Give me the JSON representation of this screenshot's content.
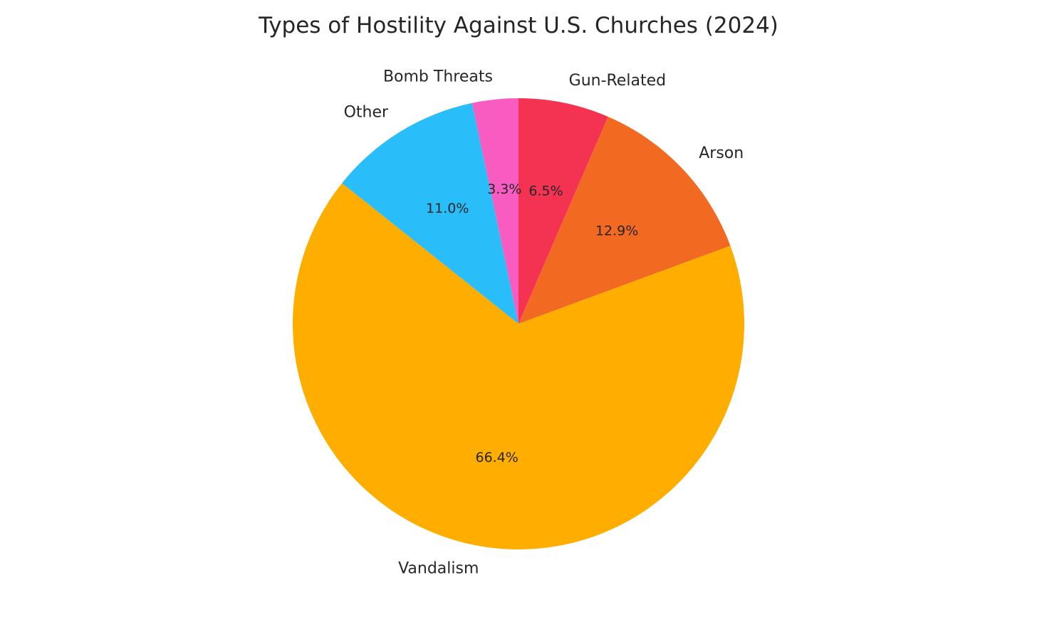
{
  "chart_data": {
    "type": "pie",
    "title": "Types of Hostility Against U.S. Churches (2024)",
    "start_angle_deg": 90,
    "direction": "clockwise",
    "slices": [
      {
        "label": "Gun-Related",
        "value": 6.5,
        "pct_text": "6.5%",
        "color": "#F43353"
      },
      {
        "label": "Arson",
        "value": 12.9,
        "pct_text": "12.9%",
        "color": "#F26A22"
      },
      {
        "label": "Vandalism",
        "value": 66.4,
        "pct_text": "66.4%",
        "color": "#FFAE00"
      },
      {
        "label": "Other",
        "value": 11.0,
        "pct_text": "11.0%",
        "color": "#29BDF9"
      },
      {
        "label": "Bomb Threats",
        "value": 3.3,
        "pct_text": "3.3%",
        "color": "#F95CC1"
      }
    ]
  }
}
